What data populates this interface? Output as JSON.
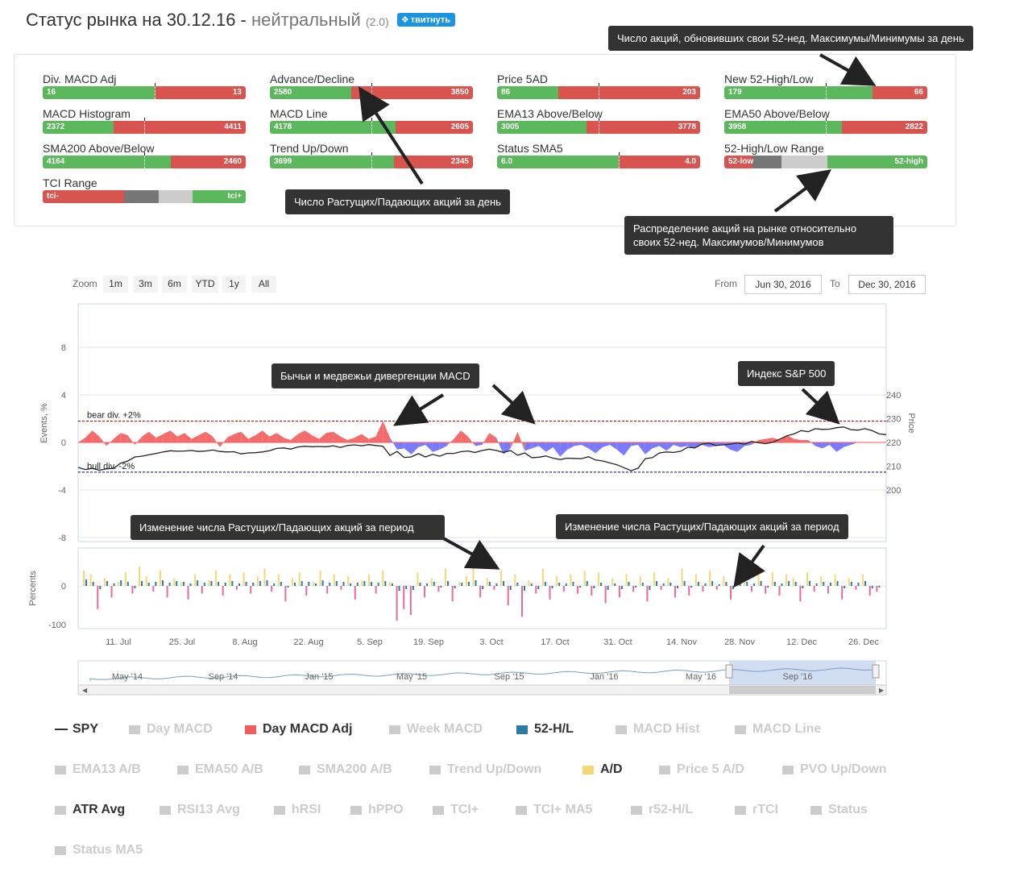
{
  "header": {
    "title": "Статус рынка на 30.12.16 - ",
    "status": "нейтральный",
    "score": "(2.0)",
    "tweet_label": "твитнуть"
  },
  "indicators": [
    {
      "label": "Div. MACD Adj",
      "left": "16",
      "right": "13",
      "green_fraction": 0.55,
      "marker": 0.55
    },
    {
      "label": "Advance/Decline",
      "left": "2580",
      "right": "3850",
      "green_fraction": 0.4,
      "marker": 0.5
    },
    {
      "label": "Price 5AD",
      "left": "86",
      "right": "203",
      "green_fraction": 0.3,
      "marker": 0.5
    },
    {
      "label": "New 52-High/Low",
      "left": "179",
      "right": "66",
      "green_fraction": 0.73,
      "marker": 0.5
    },
    {
      "label": "MACD Histogram",
      "left": "2372",
      "right": "4411",
      "green_fraction": 0.35,
      "marker": 0.5
    },
    {
      "label": "MACD Line",
      "left": "4178",
      "right": "2605",
      "green_fraction": 0.62,
      "marker": 0.5
    },
    {
      "label": "EMA13 Above/Below",
      "left": "3005",
      "right": "3778",
      "green_fraction": 0.44,
      "marker": 0.5
    },
    {
      "label": "EMA50 Above/Below",
      "left": "3958",
      "right": "2822",
      "green_fraction": 0.58,
      "marker": 0.5
    },
    {
      "label": "SMA200 Above/Below",
      "left": "4164",
      "right": "2460",
      "green_fraction": 0.63,
      "marker": 0.5
    },
    {
      "label": "Trend Up/Down",
      "left": "3699",
      "right": "2345",
      "green_fraction": 0.61,
      "marker": 0.5
    },
    {
      "label": "Status SMA5",
      "left": "6.0",
      "right": "4.0",
      "green_fraction": 0.6,
      "marker": 0.6
    },
    {
      "label": "52-High/Low Range",
      "left": "52-low",
      "right": "52-high",
      "type": "range52"
    },
    {
      "label": "TCI Range",
      "left": "tci-",
      "right": "tci+",
      "type": "tci"
    }
  ],
  "callouts": {
    "new_high_low": "Число акций, обновивших свои 52-нед. Максимумы/Минимумы за день",
    "adv_decl": "Число Растущих/Падающих акций за день",
    "range_line1": "Распределение акций на рынке относительно",
    "range_line2": "своих 52-нед. Максимумов/Минимумов",
    "divergence": "Бычьи и медвежьи дивергенции MACD",
    "sp500": "Индекс S&P 500",
    "ad_change_1": "Изменение числа Растущих/Падающих акций за период",
    "ad_change_2": "Изменение числа Растущих/Падающих акций за период"
  },
  "controls": {
    "zoom_label": "Zoom",
    "zoom_buttons": [
      "1m",
      "3m",
      "6m",
      "YTD",
      "1y",
      "All"
    ],
    "from_label": "From",
    "from_value": "Jun 30, 2016",
    "to_label": "To",
    "to_value": "Dec 30, 2016"
  },
  "chart_data": [
    {
      "type": "line",
      "title": "",
      "ylabel_left": "Events, %",
      "ylabel_right": "Price",
      "y_left_ticks": [
        "8",
        "4",
        "0",
        "-4",
        "-8"
      ],
      "y_right_ticks": [
        "240",
        "230",
        "220",
        "210",
        "200"
      ],
      "ylim_left": [
        -8,
        8
      ],
      "ylim_right": [
        200,
        240
      ],
      "bear_label": "bear div. +2%",
      "bull_label": "bull div. -2%",
      "thresholds": [
        1.8,
        -2.5
      ],
      "series": [
        {
          "name": "SPY",
          "color": "#222222",
          "values": [
            209.5,
            208.6,
            209.1,
            208.3,
            208.9,
            209.1,
            211.3,
            212.2,
            213.9,
            214.2,
            214.8,
            215.4,
            216.0,
            216.5,
            216.3,
            216.4,
            216.6,
            216.2,
            216.4,
            216.8,
            216.2,
            216.0,
            216.1,
            215.2,
            215.6,
            215.7,
            216.0,
            216.5,
            217.5,
            217.7,
            217.2,
            218.1,
            218.4,
            218.2,
            218.3,
            218.2,
            218.6,
            217.9,
            218.7,
            219.0,
            218.6,
            219.1,
            218.7,
            218.4,
            214.5,
            216.2,
            213.7,
            213.9,
            215.3,
            213.9,
            215.0,
            214.2,
            215.4,
            215.4,
            216.1,
            216.4,
            215.8,
            216.6,
            217.2,
            216.6,
            215.8,
            216.6,
            214.6,
            215.6,
            213.6,
            213.8,
            214.3,
            213.4,
            212.8,
            213.4,
            213.3,
            213.2,
            214.0,
            212.6,
            212.2,
            211.4,
            210.6,
            209.4,
            208.1,
            209.2,
            213.2,
            213.6,
            215.6,
            216.0,
            215.8,
            216.3,
            218.0,
            217.7,
            219.3,
            219.7,
            218.7,
            219.0,
            219.3,
            219.8,
            219.3,
            220.4,
            219.9,
            219.5,
            220.1,
            221.4,
            222.8,
            223.6,
            225.0,
            224.5,
            225.8,
            225.5,
            225.6,
            226.2,
            226.5,
            225.4,
            225.2,
            225.8,
            225.0,
            223.6,
            223.3
          ],
          "axis": "right"
        },
        {
          "name": "Day MACD Adj",
          "color": "#f45b5b",
          "values": [
            0,
            0.4,
            1,
            0.5,
            -0.3,
            0.3,
            0.8,
            0.6,
            -0.2,
            0.5,
            0.9,
            0.4,
            0.7,
            1.0,
            0.5,
            0.8,
            0.3,
            0.6,
            0.9,
            0.5,
            -0.4,
            0.4,
            0.7,
            0.9,
            0.3,
            0.6,
            1.0,
            0.5,
            0.8,
            0.4,
            0.2,
            0.7,
            1.0,
            0.6,
            0.3,
            0.8,
            0.9,
            0.5,
            0.2,
            0.4,
            0.7,
            0.3,
            0.5,
            1.8,
            0.4,
            -0.6,
            -0.5,
            -1.0,
            -0.4,
            -0.2,
            -0.8,
            -0.6,
            -0.3,
            0.3,
            1.0,
            0.5,
            -0.3,
            -0.2,
            0.8,
            0.4,
            -1.0,
            -0.5,
            0.9,
            -0.7,
            -0.5,
            -0.3,
            -0.8,
            -0.4,
            -1.2,
            -0.6,
            -0.3,
            -0.2,
            -0.5,
            -0.9,
            -0.4,
            -0.2,
            -0.6,
            -1.1,
            -0.3,
            -0.2,
            -1.0,
            -0.5,
            -0.3,
            -0.7,
            -0.2,
            -0.4,
            -0.3,
            -0.5,
            -0.2,
            -0.4,
            -0.3,
            -0.2,
            -0.6,
            -0.8,
            -0.3,
            -0.2,
            0.2,
            0.3,
            0.4,
            0.2,
            0.6,
            0.3,
            0.2,
            0.2,
            -0.3,
            -0.5,
            -0.2,
            -0.8,
            -0.4,
            -0.2,
            0,
            0,
            0,
            0,
            0
          ],
          "axis": "left"
        }
      ]
    },
    {
      "type": "bar",
      "ylabel": "Percents",
      "y_ticks": [
        "0",
        "-100"
      ],
      "ylim": [
        -150,
        100
      ],
      "x_ticks": [
        "11. Jul",
        "25. Jul",
        "8. Aug",
        "22. Aug",
        "5. Sep",
        "19. Sep",
        "3. Oct",
        "17. Oct",
        "31. Oct",
        "14. Nov",
        "28. Nov",
        "12. Dec",
        "26. Dec"
      ],
      "series": [
        {
          "name": "A/D",
          "color": "#f7d774",
          "values": [
            40,
            30,
            -60,
            20,
            -30,
            10,
            35,
            -20,
            50,
            25,
            -15,
            40,
            -30,
            20,
            10,
            -35,
            30,
            -20,
            15,
            40,
            -25,
            30,
            -10,
            35,
            -20,
            25,
            45,
            -15,
            30,
            -40,
            20,
            35,
            -25,
            10,
            40,
            -20,
            30,
            -10,
            25,
            -35,
            15,
            30,
            -20,
            40,
            10,
            -90,
            -60,
            -75,
            35,
            -30,
            20,
            -15,
            45,
            -40,
            10,
            25,
            55,
            -30,
            20,
            -10,
            40,
            -50,
            30,
            -80,
            15,
            -20,
            45,
            -35,
            25,
            -15,
            30,
            -20,
            40,
            -25,
            35,
            -45,
            20,
            -30,
            30,
            -15,
            25,
            -40,
            35,
            -10,
            20,
            -30,
            45,
            -25,
            30,
            -15,
            40,
            -10,
            25,
            -35,
            20,
            30,
            -15,
            45,
            -20,
            35,
            -25,
            30,
            20,
            -40,
            35,
            -15,
            25,
            -20,
            30,
            -35,
            20,
            -10,
            30,
            -25,
            -15
          ]
        },
        {
          "name": "52-H/L",
          "color": "#2b7ca5",
          "values": [
            8,
            5,
            -4,
            6,
            3,
            7,
            5,
            -3,
            6,
            4,
            5,
            7,
            4,
            6,
            5,
            3,
            7,
            4,
            6,
            5,
            4,
            6,
            3,
            5,
            4,
            6,
            7,
            3,
            5,
            -2,
            4,
            6,
            5,
            3,
            7,
            4,
            6,
            5,
            3,
            4,
            6,
            5,
            4,
            6,
            3,
            -6,
            -4,
            -5,
            4,
            3,
            5,
            -2,
            6,
            -3,
            4,
            5,
            7,
            -4,
            5,
            3,
            6,
            -5,
            4,
            -6,
            3,
            -4,
            5,
            -3,
            4,
            3,
            5,
            -2,
            6,
            -3,
            4,
            -5,
            3,
            -4,
            5,
            -2,
            4,
            -5,
            6,
            3,
            4,
            -3,
            6,
            -2,
            5,
            3,
            6,
            2,
            5,
            -4,
            4,
            5,
            3,
            6,
            -2,
            5,
            3,
            6,
            5,
            -3,
            6,
            3,
            5,
            4,
            6,
            -3,
            5,
            4,
            6,
            -3,
            -2
          ]
        }
      ]
    }
  ],
  "navigator": {
    "labels": [
      "May '14",
      "Sep '14",
      "Jan '15",
      "May '15",
      "Sep '15",
      "Jan '16",
      "May '16",
      "Sep '16"
    ]
  },
  "legend": [
    {
      "label": "SPY",
      "on": true,
      "kind": "line",
      "color": "#333333"
    },
    {
      "label": "Day MACD",
      "on": false,
      "kind": "box",
      "color": "#cccccc"
    },
    {
      "label": "Day MACD Adj",
      "on": true,
      "kind": "box",
      "color": "#f45b5b"
    },
    {
      "label": "Week MACD",
      "on": false,
      "kind": "box",
      "color": "#cccccc"
    },
    {
      "label": "52-H/L",
      "on": true,
      "kind": "box",
      "color": "#2b7ca5"
    },
    {
      "label": "MACD Hist",
      "on": false,
      "kind": "box",
      "color": "#cccccc"
    },
    {
      "label": "MACD Line",
      "on": false,
      "kind": "box",
      "color": "#cccccc"
    },
    {
      "label": "EMA13 A/B",
      "on": false,
      "kind": "box",
      "color": "#cccccc"
    },
    {
      "label": "EMA50 A/B",
      "on": false,
      "kind": "box",
      "color": "#cccccc"
    },
    {
      "label": "SMA200 A/B",
      "on": false,
      "kind": "box",
      "color": "#cccccc"
    },
    {
      "label": "Trend Up/Down",
      "on": false,
      "kind": "box",
      "color": "#cccccc"
    },
    {
      "label": "A/D",
      "on": true,
      "kind": "box",
      "color": "#f7d774"
    },
    {
      "label": "Price 5 A/D",
      "on": false,
      "kind": "box",
      "color": "#cccccc"
    },
    {
      "label": "PVO Up/Down",
      "on": false,
      "kind": "box",
      "color": "#cccccc"
    },
    {
      "label": "ATR Avg",
      "on": true,
      "kind": "box",
      "color": "#cccccc"
    },
    {
      "label": "RSI13 Avg",
      "on": false,
      "kind": "box",
      "color": "#cccccc"
    },
    {
      "label": "hRSI",
      "on": false,
      "kind": "box",
      "color": "#cccccc"
    },
    {
      "label": "hPPO",
      "on": false,
      "kind": "box",
      "color": "#cccccc"
    },
    {
      "label": "TCI+",
      "on": false,
      "kind": "box",
      "color": "#cccccc"
    },
    {
      "label": "TCI+ MA5",
      "on": false,
      "kind": "box",
      "color": "#cccccc"
    },
    {
      "label": "r52-H/L",
      "on": false,
      "kind": "box",
      "color": "#cccccc"
    },
    {
      "label": "rTCI",
      "on": false,
      "kind": "box",
      "color": "#cccccc"
    },
    {
      "label": "Status",
      "on": false,
      "kind": "box",
      "color": "#cccccc"
    },
    {
      "label": "Status MA5",
      "on": false,
      "kind": "box",
      "color": "#cccccc"
    }
  ]
}
